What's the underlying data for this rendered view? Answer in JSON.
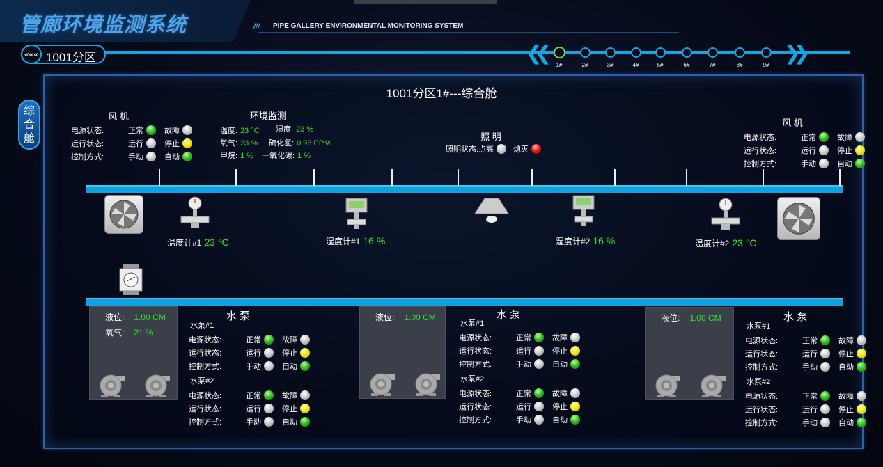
{
  "header": {
    "title": "管廊环境监测系统",
    "subtitle": "PIPE GALLERY ENVIRONMENTAL MONITORING SYSTEM",
    "stripes": "///"
  },
  "zone": {
    "back_icon": "«««",
    "label": "1001分区"
  },
  "nav": {
    "prev_icon": "❮❮",
    "next_icon": "❯❯",
    "stations": [
      "1#",
      "2#",
      "3#",
      "4#",
      "5#",
      "6#",
      "7#",
      "8#",
      "9#"
    ],
    "active_index": 0
  },
  "side_tab": {
    "label": "综合舱"
  },
  "panel": {
    "title": "1001分区1#---综合舱"
  },
  "colors": {
    "accent": "#13a6e2",
    "value_green": "#2ee82e",
    "light_green": "#2fb81c",
    "light_gray": "#c8c8c8",
    "light_yellow": "#f2e40b",
    "light_red": "#e01010"
  },
  "fan_left": {
    "title": "风 机",
    "rows": [
      {
        "label": "电源状态:",
        "a": "正常",
        "a_light": "green",
        "b": "故障",
        "b_light": "gray"
      },
      {
        "label": "运行状态:",
        "a": "运行",
        "a_light": "gray",
        "b": "停止",
        "b_light": "yellow"
      },
      {
        "label": "控制方式:",
        "a": "手动",
        "a_light": "gray",
        "b": "自动",
        "b_light": "green"
      }
    ]
  },
  "fan_right": {
    "title": "风 机",
    "rows": [
      {
        "label": "电源状态:",
        "a": "正常",
        "a_light": "green",
        "b": "故障",
        "b_light": "gray"
      },
      {
        "label": "运行状态:",
        "a": "运行",
        "a_light": "gray",
        "b": "停止",
        "b_light": "yellow"
      },
      {
        "label": "控制方式:",
        "a": "手动",
        "a_light": "gray",
        "b": "自动",
        "b_light": "green"
      }
    ]
  },
  "env": {
    "title": "环境监测",
    "items": [
      {
        "label": "温度:",
        "value": "23 °C"
      },
      {
        "label": "湿度:",
        "value": "23 %"
      },
      {
        "label": "氧气:",
        "value": "23 %"
      },
      {
        "label": "硫化氢:",
        "value": "0.93 PPM"
      },
      {
        "label": "甲烷:",
        "value": "1 %"
      },
      {
        "label": "一氧化碳:",
        "value": "1 %"
      }
    ]
  },
  "lighting": {
    "title": "照 明",
    "label": "照明状态:",
    "on": "点亮",
    "on_light": "gray",
    "off": "熄灭",
    "off_light": "red"
  },
  "sensors": [
    {
      "label": "温度计#1",
      "value": "23 °C"
    },
    {
      "label": "湿度计#1",
      "value": "16 %"
    },
    {
      "label": "湿度计#2",
      "value": "16 %"
    },
    {
      "label": "温度计#2",
      "value": "23 °C"
    }
  ],
  "pump_groups": [
    {
      "title": "水 泵",
      "tank": [
        {
          "label": "液位:",
          "value": "1.00 CM"
        },
        {
          "label": "氧气:",
          "value": "21 %"
        }
      ],
      "pumps": [
        {
          "name": "水泵#1",
          "rows": [
            {
              "label": "电源状态:",
              "a": "正常",
              "a_light": "green",
              "b": "故障",
              "b_light": "gray"
            },
            {
              "label": "运行状态:",
              "a": "运行",
              "a_light": "gray",
              "b": "停止",
              "b_light": "yellow"
            },
            {
              "label": "控制方式:",
              "a": "手动",
              "a_light": "gray",
              "b": "自动",
              "b_light": "green"
            }
          ]
        },
        {
          "name": "水泵#2",
          "rows": [
            {
              "label": "电源状态:",
              "a": "正常",
              "a_light": "green",
              "b": "故障",
              "b_light": "gray"
            },
            {
              "label": "运行状态:",
              "a": "运行",
              "a_light": "gray",
              "b": "停止",
              "b_light": "yellow"
            },
            {
              "label": "控制方式:",
              "a": "手动",
              "a_light": "gray",
              "b": "自动",
              "b_light": "green"
            }
          ]
        }
      ]
    },
    {
      "title": "水 泵",
      "tank": [
        {
          "label": "液位:",
          "value": "1.00 CM"
        }
      ],
      "pumps": [
        {
          "name": "水泵#1",
          "rows": [
            {
              "label": "电源状态:",
              "a": "正常",
              "a_light": "green",
              "b": "故障",
              "b_light": "gray"
            },
            {
              "label": "运行状态:",
              "a": "运行",
              "a_light": "gray",
              "b": "停止",
              "b_light": "yellow"
            },
            {
              "label": "控制方式:",
              "a": "手动",
              "a_light": "gray",
              "b": "自动",
              "b_light": "green"
            }
          ]
        },
        {
          "name": "水泵#2",
          "rows": [
            {
              "label": "电源状态:",
              "a": "正常",
              "a_light": "green",
              "b": "故障",
              "b_light": "gray"
            },
            {
              "label": "运行状态:",
              "a": "运行",
              "a_light": "gray",
              "b": "停止",
              "b_light": "yellow"
            },
            {
              "label": "控制方式:",
              "a": "手动",
              "a_light": "gray",
              "b": "自动",
              "b_light": "green"
            }
          ]
        }
      ]
    },
    {
      "title": "水 泵",
      "tank": [
        {
          "label": "液位:",
          "value": "1.00 CM"
        }
      ],
      "pumps": [
        {
          "name": "水泵#1",
          "rows": [
            {
              "label": "电源状态:",
              "a": "正常",
              "a_light": "green",
              "b": "故障",
              "b_light": "gray"
            },
            {
              "label": "运行状态:",
              "a": "运行",
              "a_light": "gray",
              "b": "停止",
              "b_light": "yellow"
            },
            {
              "label": "控制方式:",
              "a": "手动",
              "a_light": "gray",
              "b": "自动",
              "b_light": "green"
            }
          ]
        },
        {
          "name": "水泵#2",
          "rows": [
            {
              "label": "电源状态:",
              "a": "正常",
              "a_light": "green",
              "b": "故障",
              "b_light": "gray"
            },
            {
              "label": "运行状态:",
              "a": "运行",
              "a_light": "gray",
              "b": "停止",
              "b_light": "yellow"
            },
            {
              "label": "控制方式:",
              "a": "手动",
              "a_light": "gray",
              "b": "自动",
              "b_light": "green"
            }
          ]
        }
      ]
    }
  ]
}
